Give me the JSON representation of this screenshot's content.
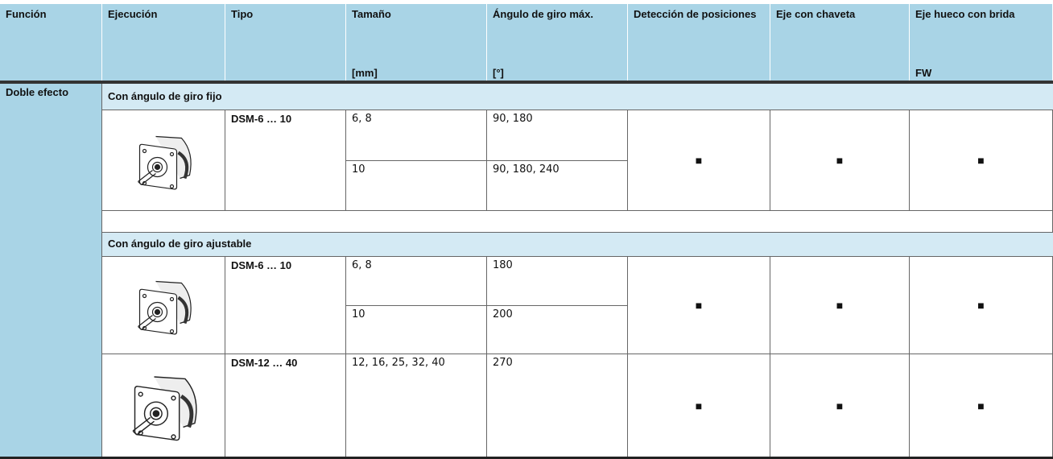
{
  "header": {
    "columns": [
      {
        "title": "Función"
      },
      {
        "title": "Ejecución"
      },
      {
        "title": "Tipo"
      },
      {
        "title": "Tamaño",
        "unit": "[mm]"
      },
      {
        "title": "Ángulo de giro máx.",
        "unit": "[°]"
      },
      {
        "title": "Detección de posiciones"
      },
      {
        "title": "Eje con chaveta"
      },
      {
        "title": "Eje hueco con brida",
        "unit": "FW"
      }
    ]
  },
  "body": {
    "function": "Doble efecto",
    "sections": [
      {
        "title": "Con ángulo de giro fijo",
        "groups": [
          {
            "type": "DSM-6 … 10",
            "rows": [
              {
                "size": "6, 8",
                "angle": "90, 180"
              },
              {
                "size": "10",
                "angle": "90, 180, 240"
              }
            ],
            "marks": [
              "■",
              "■",
              "■"
            ]
          }
        ]
      },
      {
        "title": "Con ángulo de giro ajustable",
        "groups": [
          {
            "type": "DSM-6 … 10",
            "rows": [
              {
                "size": "6, 8",
                "angle": "180"
              },
              {
                "size": "10",
                "angle": "200"
              }
            ],
            "marks": [
              "■",
              "■",
              "■"
            ]
          },
          {
            "type": "DSM-12 … 40",
            "rows": [
              {
                "size": "12, 16, 25, 32, 40",
                "angle": "270"
              }
            ],
            "marks": [
              "■",
              "■",
              "■"
            ]
          }
        ]
      }
    ]
  }
}
